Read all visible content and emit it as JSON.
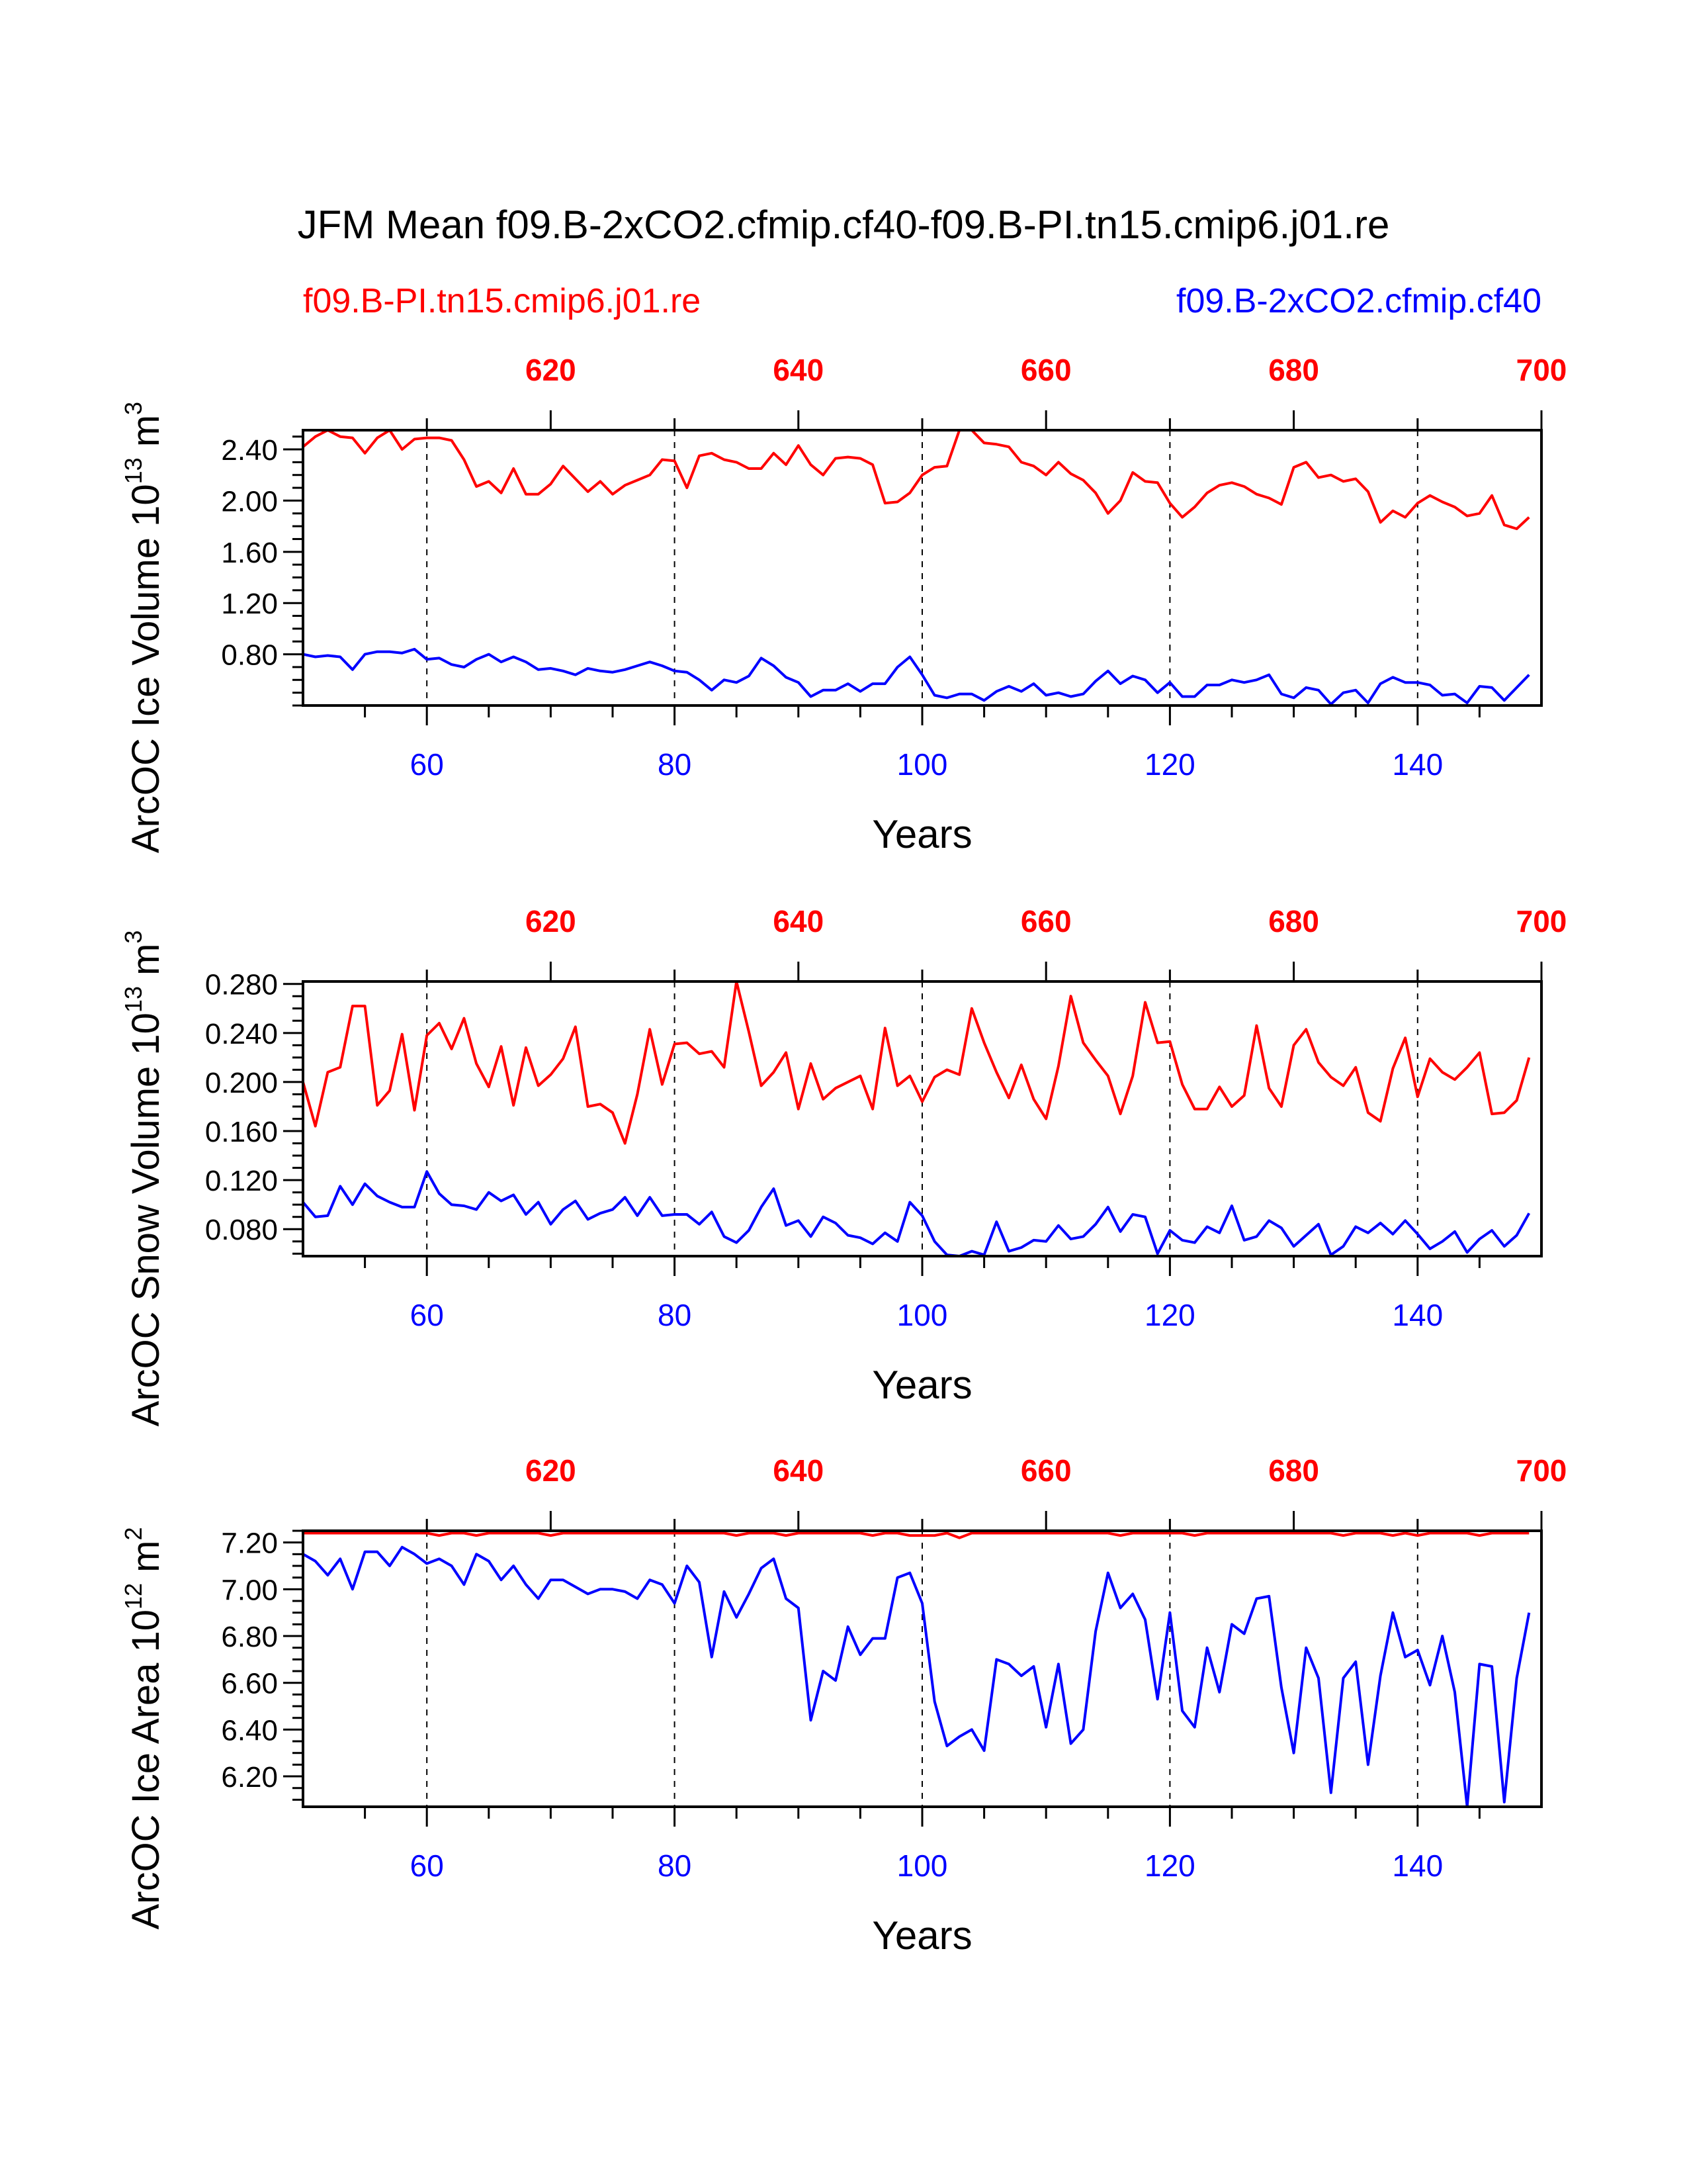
{
  "title": "JFM Mean f09.B-2xCO2.cfmip.cf40-f09.B-PI.tn15.cmip6.j01.re",
  "legend": {
    "left_label": "f09.B-PI.tn15.cmip6.j01.re",
    "right_label": "f09.B-2xCO2.cfmip.cf40"
  },
  "colors": {
    "red": "#ff0000",
    "blue": "#0000ff",
    "axis": "#000000"
  },
  "chart_data": [
    {
      "type": "line",
      "ylabel": "ArcOC Ice Volume 10",
      "ylabel_exp": "13",
      "ylabel_unit": " m",
      "ylabel_unit_exp": "3",
      "xlabel": "Years",
      "xlim": [
        50,
        150
      ],
      "ylim": [
        0.4,
        2.55
      ],
      "yticks": [
        "2.40",
        "2.00",
        "1.60",
        "1.20",
        "0.80"
      ],
      "bottom_xticks": [
        "60",
        "80",
        "100",
        "120",
        "140"
      ],
      "top_xticks": [
        "620",
        "640",
        "660",
        "680",
        "700"
      ],
      "top_offset": 550,
      "x_start": 50,
      "series": [
        {
          "name": "f09.B-PI.tn15.cmip6.j01.re",
          "color": "red",
          "values": [
            2.42,
            2.5,
            2.55,
            2.5,
            2.49,
            2.37,
            2.49,
            2.55,
            2.4,
            2.48,
            2.49,
            2.49,
            2.47,
            2.32,
            2.11,
            2.15,
            2.06,
            2.25,
            2.05,
            2.05,
            2.13,
            2.27,
            2.17,
            2.07,
            2.15,
            2.05,
            2.12,
            2.16,
            2.2,
            2.32,
            2.31,
            2.1,
            2.35,
            2.37,
            2.32,
            2.3,
            2.25,
            2.25,
            2.37,
            2.28,
            2.43,
            2.28,
            2.2,
            2.33,
            2.34,
            2.33,
            2.28,
            1.98,
            1.99,
            2.06,
            2.2,
            2.26,
            2.27,
            2.55,
            2.55,
            2.45,
            2.44,
            2.42,
            2.3,
            2.27,
            2.2,
            2.3,
            2.21,
            2.16,
            2.06,
            1.9,
            2.0,
            2.22,
            2.15,
            2.14,
            1.98,
            1.87,
            1.95,
            2.06,
            2.12,
            2.14,
            2.11,
            2.05,
            2.02,
            1.97,
            2.26,
            2.3,
            2.18,
            2.2,
            2.15,
            2.17,
            2.07,
            1.83,
            1.92,
            1.87,
            1.98,
            2.04,
            1.99,
            1.95,
            1.88,
            1.9,
            2.04,
            1.81,
            1.78,
            1.87
          ]
        },
        {
          "name": "f09.B-2xCO2.cfmip.cf40",
          "color": "blue",
          "values": [
            0.8,
            0.78,
            0.79,
            0.78,
            0.68,
            0.8,
            0.82,
            0.82,
            0.81,
            0.84,
            0.76,
            0.77,
            0.72,
            0.7,
            0.76,
            0.8,
            0.74,
            0.78,
            0.74,
            0.68,
            0.69,
            0.67,
            0.64,
            0.69,
            0.67,
            0.66,
            0.68,
            0.71,
            0.74,
            0.71,
            0.67,
            0.66,
            0.6,
            0.52,
            0.6,
            0.58,
            0.63,
            0.77,
            0.71,
            0.62,
            0.58,
            0.47,
            0.52,
            0.52,
            0.57,
            0.51,
            0.57,
            0.57,
            0.7,
            0.78,
            0.64,
            0.48,
            0.46,
            0.49,
            0.49,
            0.44,
            0.51,
            0.55,
            0.51,
            0.57,
            0.48,
            0.5,
            0.47,
            0.49,
            0.59,
            0.67,
            0.57,
            0.63,
            0.6,
            0.5,
            0.58,
            0.47,
            0.47,
            0.56,
            0.56,
            0.6,
            0.58,
            0.6,
            0.64,
            0.49,
            0.46,
            0.54,
            0.52,
            0.41,
            0.5,
            0.52,
            0.42,
            0.57,
            0.62,
            0.58,
            0.58,
            0.56,
            0.48,
            0.49,
            0.42,
            0.55,
            0.54,
            0.44,
            0.54,
            0.64
          ]
        }
      ]
    },
    {
      "type": "line",
      "ylabel": "ArcOC Snow Volume 10",
      "ylabel_exp": "13",
      "ylabel_unit": " m",
      "ylabel_unit_exp": "3",
      "xlabel": "Years",
      "xlim": [
        50,
        150
      ],
      "ylim": [
        0.058,
        0.282
      ],
      "yticks": [
        "0.280",
        "0.240",
        "0.200",
        "0.160",
        "0.120",
        "0.080"
      ],
      "bottom_xticks": [
        "60",
        "80",
        "100",
        "120",
        "140"
      ],
      "top_xticks": [
        "620",
        "640",
        "660",
        "680",
        "700"
      ],
      "top_offset": 550,
      "x_start": 50,
      "series": [
        {
          "name": "f09.B-PI.tn15.cmip6.j01.re",
          "color": "red",
          "values": [
            0.2,
            0.164,
            0.208,
            0.212,
            0.262,
            0.262,
            0.181,
            0.193,
            0.239,
            0.177,
            0.238,
            0.248,
            0.227,
            0.252,
            0.215,
            0.196,
            0.229,
            0.181,
            0.228,
            0.197,
            0.206,
            0.219,
            0.245,
            0.18,
            0.182,
            0.175,
            0.15,
            0.19,
            0.243,
            0.198,
            0.231,
            0.232,
            0.223,
            0.225,
            0.212,
            0.282,
            0.241,
            0.197,
            0.208,
            0.224,
            0.178,
            0.215,
            0.186,
            0.195,
            0.2,
            0.205,
            0.178,
            0.244,
            0.197,
            0.205,
            0.184,
            0.204,
            0.21,
            0.206,
            0.26,
            0.232,
            0.208,
            0.187,
            0.214,
            0.186,
            0.17,
            0.213,
            0.27,
            0.232,
            0.218,
            0.205,
            0.174,
            0.205,
            0.265,
            0.232,
            0.233,
            0.198,
            0.178,
            0.178,
            0.196,
            0.18,
            0.189,
            0.246,
            0.195,
            0.18,
            0.23,
            0.243,
            0.216,
            0.204,
            0.197,
            0.212,
            0.175,
            0.168,
            0.211,
            0.236,
            0.188,
            0.219,
            0.208,
            0.202,
            0.212,
            0.224,
            0.174,
            0.175,
            0.185,
            0.22
          ]
        },
        {
          "name": "f09.B-2xCO2.cfmip.cf40",
          "color": "blue",
          "values": [
            0.102,
            0.09,
            0.091,
            0.115,
            0.1,
            0.117,
            0.107,
            0.102,
            0.098,
            0.098,
            0.127,
            0.109,
            0.1,
            0.099,
            0.096,
            0.11,
            0.103,
            0.108,
            0.092,
            0.102,
            0.084,
            0.096,
            0.103,
            0.088,
            0.093,
            0.096,
            0.106,
            0.091,
            0.106,
            0.091,
            0.092,
            0.092,
            0.084,
            0.094,
            0.074,
            0.069,
            0.079,
            0.098,
            0.113,
            0.083,
            0.087,
            0.074,
            0.09,
            0.085,
            0.075,
            0.073,
            0.068,
            0.077,
            0.07,
            0.102,
            0.091,
            0.07,
            0.059,
            0.058,
            0.062,
            0.059,
            0.086,
            0.062,
            0.065,
            0.071,
            0.07,
            0.083,
            0.072,
            0.074,
            0.084,
            0.098,
            0.078,
            0.092,
            0.09,
            0.06,
            0.079,
            0.071,
            0.069,
            0.082,
            0.077,
            0.099,
            0.071,
            0.074,
            0.087,
            0.081,
            0.066,
            0.075,
            0.084,
            0.059,
            0.066,
            0.082,
            0.077,
            0.085,
            0.076,
            0.087,
            0.076,
            0.064,
            0.07,
            0.078,
            0.061,
            0.072,
            0.079,
            0.066,
            0.075,
            0.093
          ]
        }
      ]
    },
    {
      "type": "line",
      "ylabel": "ArcOC Ice Area 10",
      "ylabel_exp": "12",
      "ylabel_unit": " m",
      "ylabel_unit_exp": "2",
      "xlabel": "Years",
      "xlim": [
        50,
        150
      ],
      "ylim": [
        6.07,
        7.25
      ],
      "yticks": [
        "7.20",
        "7.00",
        "6.80",
        "6.60",
        "6.40",
        "6.20"
      ],
      "bottom_xticks": [
        "60",
        "80",
        "100",
        "120",
        "140"
      ],
      "top_xticks": [
        "620",
        "640",
        "660",
        "680",
        "700"
      ],
      "top_offset": 550,
      "x_start": 50,
      "series": [
        {
          "name": "f09.B-PI.tn15.cmip6.j01.re",
          "color": "red",
          "values": [
            7.24,
            7.24,
            7.24,
            7.24,
            7.24,
            7.24,
            7.24,
            7.24,
            7.24,
            7.24,
            7.24,
            7.23,
            7.24,
            7.24,
            7.23,
            7.24,
            7.24,
            7.24,
            7.24,
            7.24,
            7.23,
            7.24,
            7.24,
            7.24,
            7.24,
            7.24,
            7.24,
            7.24,
            7.24,
            7.24,
            7.24,
            7.24,
            7.24,
            7.24,
            7.24,
            7.23,
            7.24,
            7.24,
            7.24,
            7.23,
            7.24,
            7.24,
            7.24,
            7.24,
            7.24,
            7.24,
            7.23,
            7.24,
            7.24,
            7.23,
            7.23,
            7.23,
            7.24,
            7.22,
            7.24,
            7.24,
            7.24,
            7.24,
            7.24,
            7.24,
            7.24,
            7.24,
            7.24,
            7.24,
            7.24,
            7.24,
            7.23,
            7.24,
            7.24,
            7.24,
            7.24,
            7.24,
            7.23,
            7.24,
            7.24,
            7.24,
            7.24,
            7.24,
            7.24,
            7.24,
            7.24,
            7.24,
            7.24,
            7.24,
            7.23,
            7.24,
            7.24,
            7.24,
            7.23,
            7.24,
            7.23,
            7.24,
            7.24,
            7.24,
            7.24,
            7.23,
            7.24,
            7.24,
            7.24,
            7.24
          ]
        },
        {
          "name": "f09.B-2xCO2.cfmip.cf40",
          "color": "blue",
          "values": [
            7.15,
            7.12,
            7.06,
            7.13,
            7.0,
            7.16,
            7.16,
            7.1,
            7.18,
            7.15,
            7.11,
            7.13,
            7.1,
            7.02,
            7.15,
            7.12,
            7.04,
            7.1,
            7.02,
            6.96,
            7.04,
            7.04,
            7.01,
            6.98,
            7.0,
            7.0,
            6.99,
            6.96,
            7.04,
            7.02,
            6.94,
            7.1,
            7.03,
            6.71,
            6.99,
            6.88,
            6.98,
            7.09,
            7.13,
            6.96,
            6.92,
            6.44,
            6.65,
            6.61,
            6.84,
            6.72,
            6.79,
            6.79,
            7.05,
            7.07,
            6.94,
            6.52,
            6.33,
            6.37,
            6.4,
            6.31,
            6.7,
            6.68,
            6.63,
            6.67,
            6.41,
            6.68,
            6.34,
            6.4,
            6.82,
            7.07,
            6.92,
            6.98,
            6.87,
            6.53,
            6.9,
            6.48,
            6.41,
            6.75,
            6.56,
            6.85,
            6.81,
            6.96,
            6.97,
            6.58,
            6.3,
            6.75,
            6.62,
            6.13,
            6.62,
            6.69,
            6.25,
            6.63,
            6.9,
            6.71,
            6.74,
            6.59,
            6.8,
            6.56,
            6.07,
            6.68,
            6.67,
            6.09,
            6.62,
            6.9
          ]
        }
      ]
    }
  ]
}
